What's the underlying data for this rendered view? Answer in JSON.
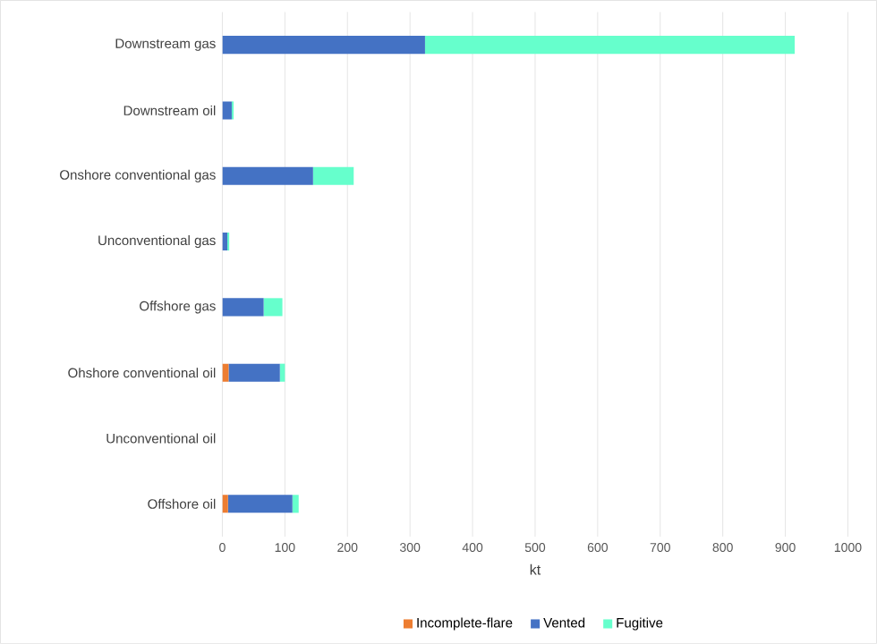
{
  "chart_data": {
    "type": "bar",
    "orientation": "horizontal",
    "stacked": true,
    "xlabel": "kt",
    "categories": [
      "Downstream gas",
      "Downstream oil",
      "Onshore conventional gas",
      "Unconventional gas",
      "Offshore gas",
      "Ohshore conventional oil",
      "Unconventional oil",
      "Offshore oil"
    ],
    "series": [
      {
        "name": "Incomplete-flare",
        "color": "#ed7d31",
        "values": [
          0,
          0,
          0,
          0,
          0,
          10,
          0,
          9
        ]
      },
      {
        "name": "Vented",
        "color": "#4472c4",
        "values": [
          324,
          15,
          145,
          8,
          66,
          82,
          0,
          103
        ]
      },
      {
        "name": "Fugitive",
        "color": "#66ffcc",
        "values": [
          591,
          3,
          65,
          3,
          30,
          8,
          0,
          10
        ]
      }
    ],
    "xlim": [
      0,
      1000
    ],
    "xticks": [
      0,
      100,
      200,
      300,
      400,
      500,
      600,
      700,
      800,
      900,
      1000
    ],
    "grid": "x",
    "legend": "bottom"
  }
}
